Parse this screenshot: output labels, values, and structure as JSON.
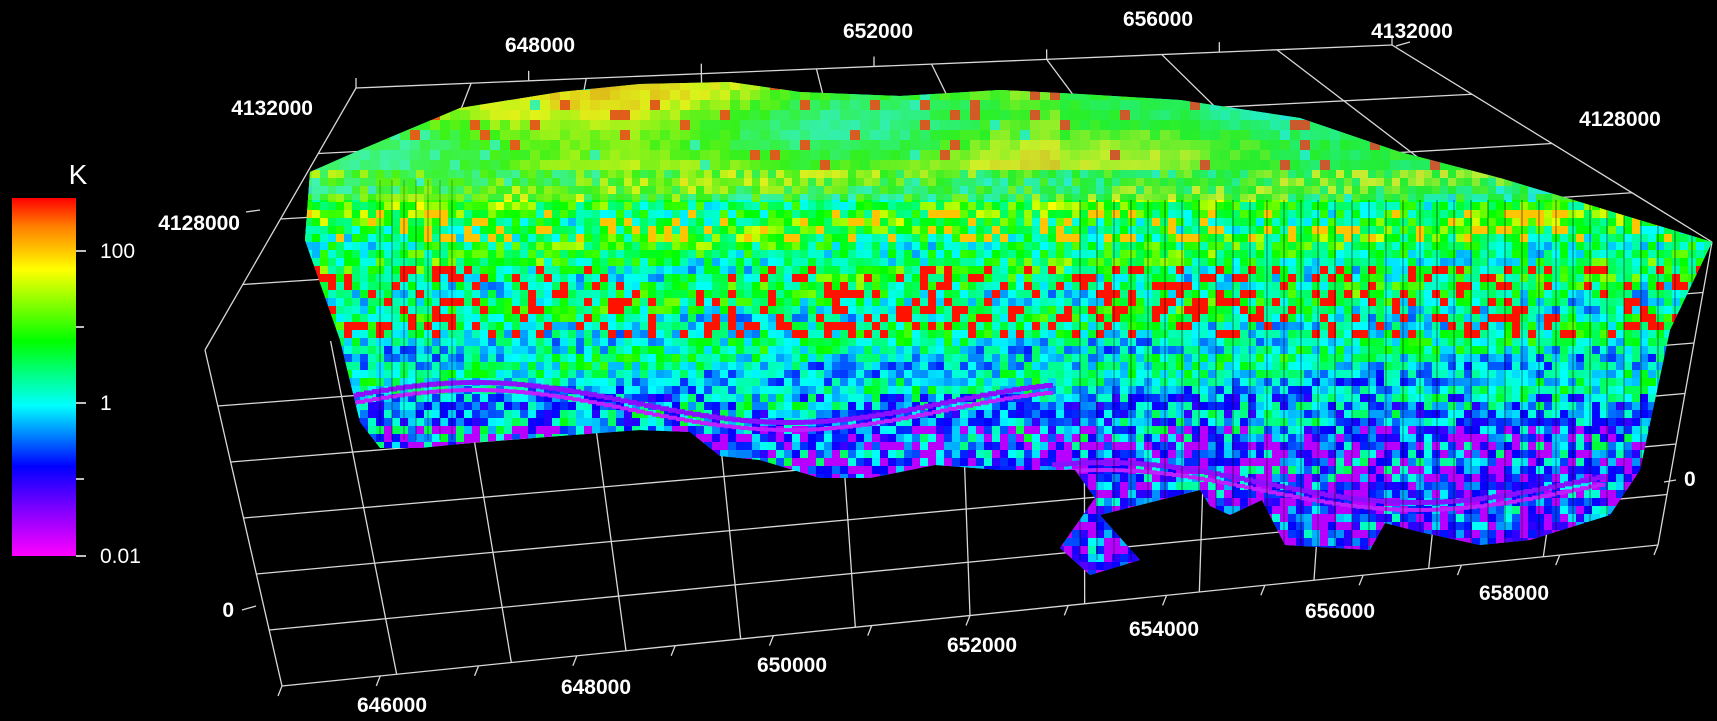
{
  "chart_data": {
    "type": "heatmap",
    "variable": "K",
    "colorbar": {
      "title": "K",
      "scale": "log",
      "range": [
        0.01,
        300
      ],
      "tick_labels": [
        "100",
        "1",
        "0.01"
      ],
      "colors": [
        "#ff00ff",
        "#8000ff",
        "#0000ff",
        "#00ffff",
        "#00ff00",
        "#ffff00",
        "#ff8000",
        "#ff0000"
      ]
    },
    "axes": {
      "x_front": {
        "tick_labels": [
          "646000",
          "648000",
          "650000",
          "652000",
          "654000",
          "656000",
          "658000"
        ]
      },
      "x_back": {
        "tick_labels": [
          "648000",
          "652000",
          "656000"
        ]
      },
      "y_left": {
        "tick_labels": [
          "4132000",
          "4128000"
        ]
      },
      "y_right": {
        "tick_labels": [
          "4132000",
          "4128000"
        ]
      },
      "z_left": {
        "tick_labels": [
          "0"
        ]
      },
      "z_right": {
        "tick_labels": [
          "0"
        ]
      }
    },
    "grid": true,
    "legend_placement": "left"
  }
}
